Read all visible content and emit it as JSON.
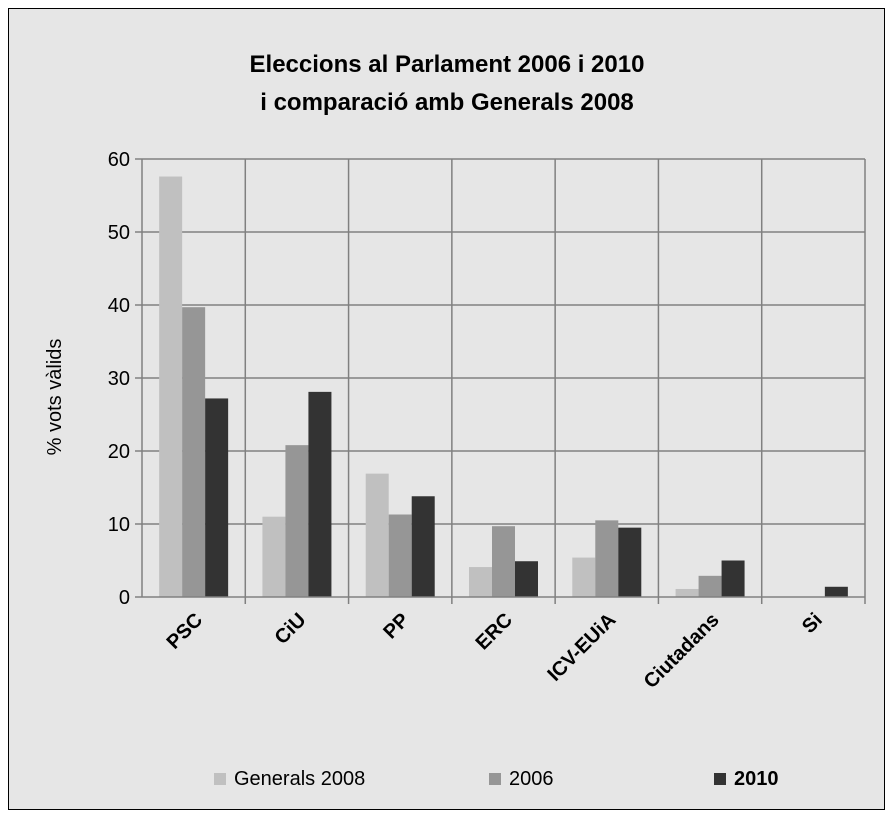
{
  "chart_data": {
    "type": "bar",
    "title_lines": [
      "Eleccions al Parlament  2006 i 2010",
      "i comparació amb Generals 2008"
    ],
    "ylabel": "% vots vàlids",
    "xlabel": "",
    "ylim": [
      0,
      60
    ],
    "y_ticks": [
      0,
      10,
      20,
      30,
      40,
      50,
      60
    ],
    "grid": true,
    "legend_position": "bottom",
    "categories": [
      "PSC",
      "CiU",
      "PP",
      "ERC",
      "ICV-EUiA",
      "Ciutadans",
      "Si"
    ],
    "series": [
      {
        "name": "Generals 2008",
        "color": "#c0c0c0",
        "bold": false,
        "values": [
          57.6,
          11.0,
          16.9,
          4.1,
          5.4,
          1.1,
          0
        ]
      },
      {
        "name": "2006",
        "color": "#969696",
        "bold": false,
        "values": [
          39.7,
          20.8,
          11.3,
          9.7,
          10.5,
          2.9,
          0
        ]
      },
      {
        "name": "2010",
        "color": "#333333",
        "bold": true,
        "values": [
          27.2,
          28.1,
          13.8,
          4.9,
          9.5,
          5.0,
          1.4
        ]
      }
    ]
  }
}
